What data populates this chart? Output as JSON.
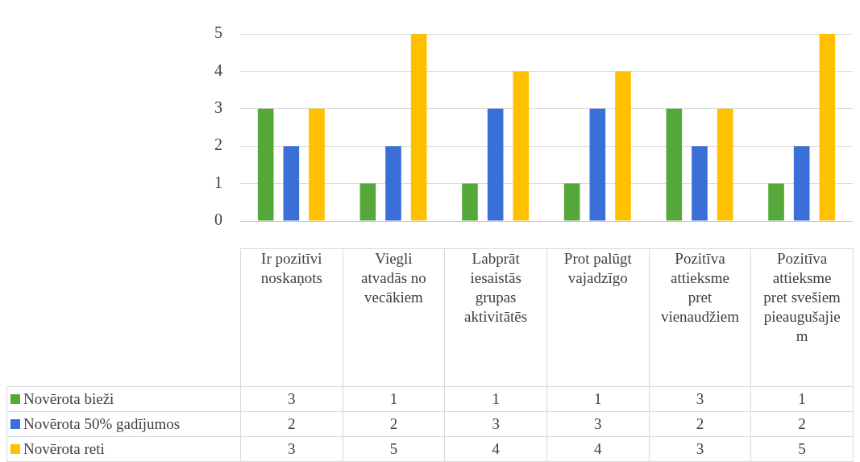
{
  "chart_data": {
    "type": "bar",
    "categories": [
      "Ir pozitīvi noskaņots",
      "Viegli atvadās no vecākiem",
      "Labprāt iesaistās grupas aktivitātēs",
      "Prot palūgt vajadzīgo",
      "Pozitīva attieksme pret vienaudžiem",
      "Pozitīva attieksme pret svešiem pieaugušajiem"
    ],
    "series": [
      {
        "name": "Novērota bieži",
        "color": "#57a83b",
        "values": [
          3,
          1,
          1,
          1,
          3,
          1
        ]
      },
      {
        "name": "Novērota 50% gadījumos",
        "color": "#3a6fd8",
        "values": [
          2,
          2,
          3,
          3,
          2,
          2
        ]
      },
      {
        "name": "Novērota reti",
        "color": "#ffc000",
        "values": [
          3,
          5,
          4,
          4,
          3,
          5
        ]
      }
    ],
    "ylim": [
      0,
      5
    ],
    "yticks": [
      0,
      1,
      2,
      3,
      4,
      5
    ],
    "grid": "y",
    "legend": "bottom",
    "data_labels": true
  }
}
